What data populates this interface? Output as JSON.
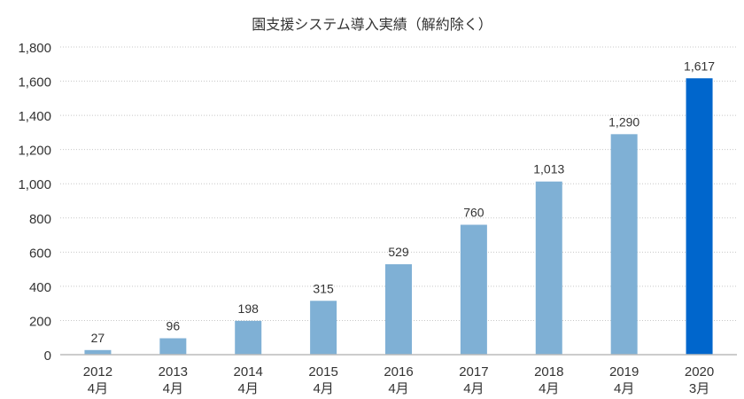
{
  "chart_data": {
    "type": "bar",
    "title": "園支援システム導入実績（解約除く）",
    "xlabel": "",
    "ylabel": "",
    "categories": [
      [
        "2012",
        "4月"
      ],
      [
        "2013",
        "4月"
      ],
      [
        "2014",
        "4月"
      ],
      [
        "2015",
        "4月"
      ],
      [
        "2016",
        "4月"
      ],
      [
        "2017",
        "4月"
      ],
      [
        "2018",
        "4月"
      ],
      [
        "2019",
        "4月"
      ],
      [
        "2020",
        "3月"
      ]
    ],
    "values": [
      27,
      96,
      198,
      315,
      529,
      760,
      1013,
      1290,
      1617
    ],
    "data_labels": [
      "27",
      "96",
      "198",
      "315",
      "529",
      "760",
      "1,013",
      "1,290",
      "1,617"
    ],
    "ylim": [
      0,
      1800
    ],
    "yticks": [
      0,
      200,
      400,
      600,
      800,
      1000,
      1200,
      1400,
      1600,
      1800
    ],
    "ytick_labels": [
      "0",
      "200",
      "400",
      "600",
      "800",
      "1,000",
      "1,200",
      "1,400",
      "1,600",
      "1,800"
    ],
    "grid": true,
    "colors": {
      "bar": "#7fb0d5",
      "highlight_bar": "#0066cc",
      "grid": "#c8c8c8",
      "axis": "#bbbbbb"
    },
    "highlight_index": 8
  }
}
